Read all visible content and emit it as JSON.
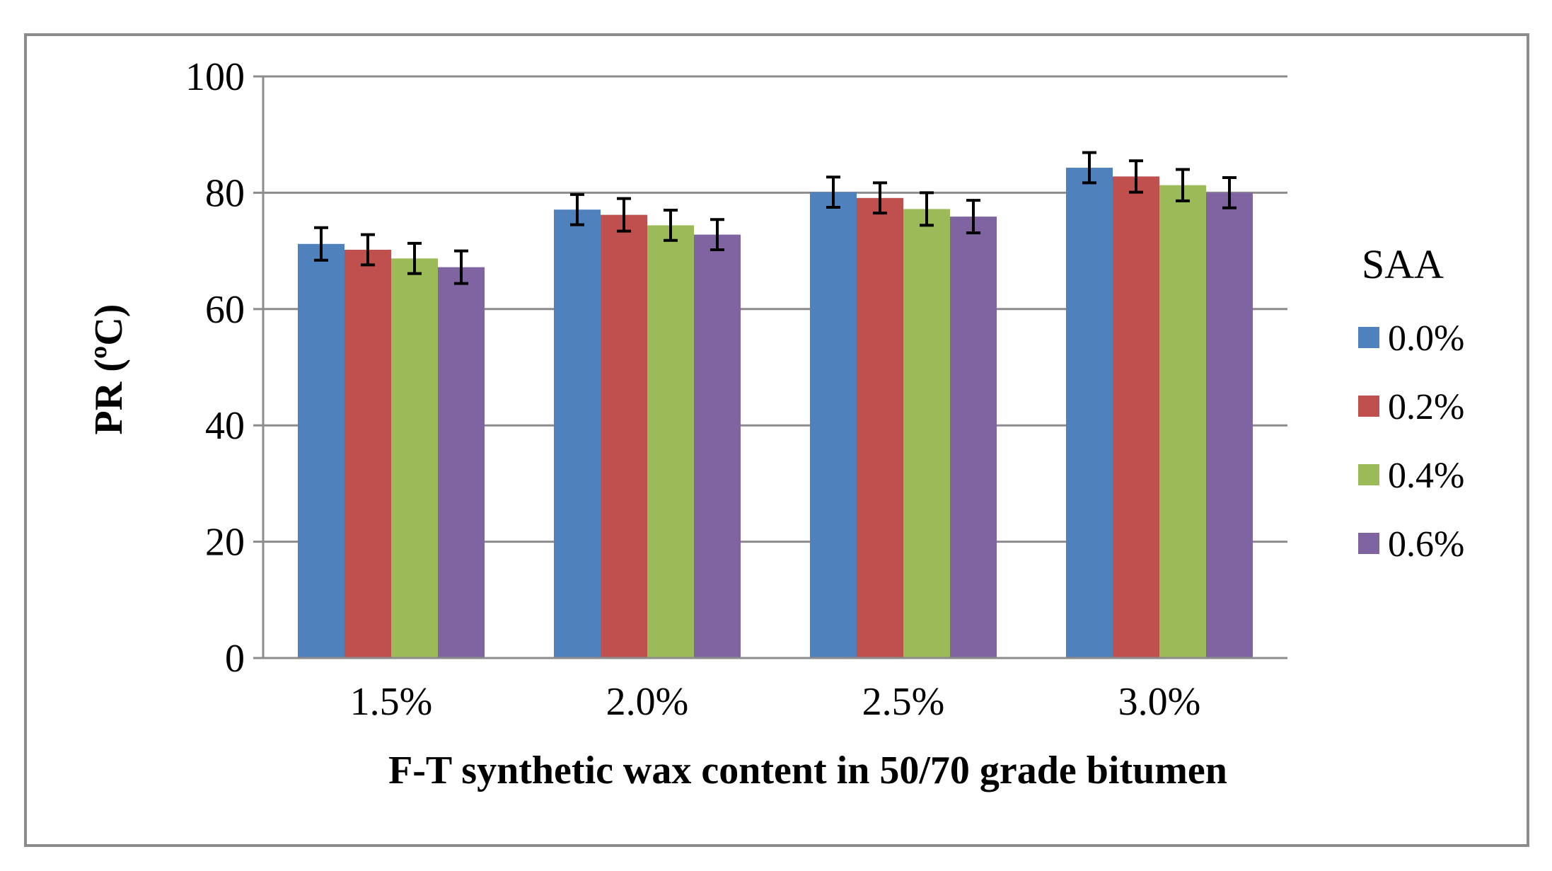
{
  "chart_data": {
    "type": "bar",
    "title": "",
    "xlabel": "F-T synthetic wax content in 50/70 grade bitumen",
    "ylabel": "PR (ºC)",
    "ylim": [
      0,
      100
    ],
    "yticks": [
      0,
      20,
      40,
      60,
      80,
      100
    ],
    "ytick_labels": [
      "0",
      "20",
      "40",
      "60",
      "80",
      "100"
    ],
    "grid": true,
    "categories": [
      "1.5%",
      "2.0%",
      "2.5%",
      "3.0%"
    ],
    "legend": {
      "title": "SAA",
      "position": "right"
    },
    "series": [
      {
        "name": "0.0%",
        "color": "#4F81BD",
        "values": [
          71.2,
          77.1,
          80.1,
          84.3
        ],
        "errors": [
          2.8,
          2.6,
          2.6,
          2.6
        ]
      },
      {
        "name": "0.2%",
        "color": "#C0504D",
        "values": [
          70.2,
          76.2,
          79.1,
          82.8
        ],
        "errors": [
          2.6,
          2.8,
          2.6,
          2.7
        ]
      },
      {
        "name": "0.4%",
        "color": "#9BBB59",
        "values": [
          68.7,
          74.4,
          77.2,
          81.3
        ],
        "errors": [
          2.6,
          2.6,
          2.8,
          2.7
        ]
      },
      {
        "name": "0.6%",
        "color": "#8064A2",
        "values": [
          67.2,
          72.8,
          75.9,
          80.0
        ],
        "errors": [
          2.8,
          2.6,
          2.8,
          2.6
        ]
      }
    ]
  }
}
